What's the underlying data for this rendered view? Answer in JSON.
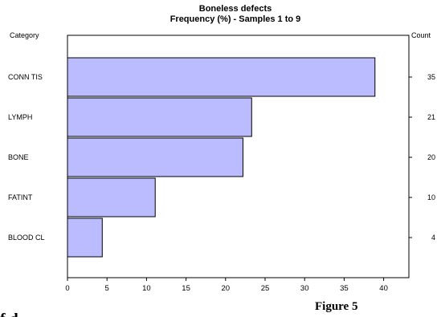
{
  "chart_data": {
    "type": "bar",
    "orientation": "horizontal",
    "title": "Boneless defects",
    "subtitle": "Frequency (%)  -  Samples 1 to 9",
    "ylabel_left": "Category",
    "ylabel_right": "Count",
    "categories": [
      "CONN TIS",
      "LYMPH",
      "BONE",
      "FATINT",
      "BLOOD CL"
    ],
    "values": [
      38.9,
      23.3,
      22.2,
      11.1,
      4.4
    ],
    "counts": [
      "35",
      "21",
      "20",
      "10",
      "4"
    ],
    "xlim": [
      0,
      43
    ],
    "xticks": [
      "0",
      "5",
      "10",
      "15",
      "20",
      "25",
      "30",
      "35",
      "40"
    ],
    "grid": false,
    "bar_color": "#bbbbff"
  },
  "figure_caption": "Figure 5"
}
